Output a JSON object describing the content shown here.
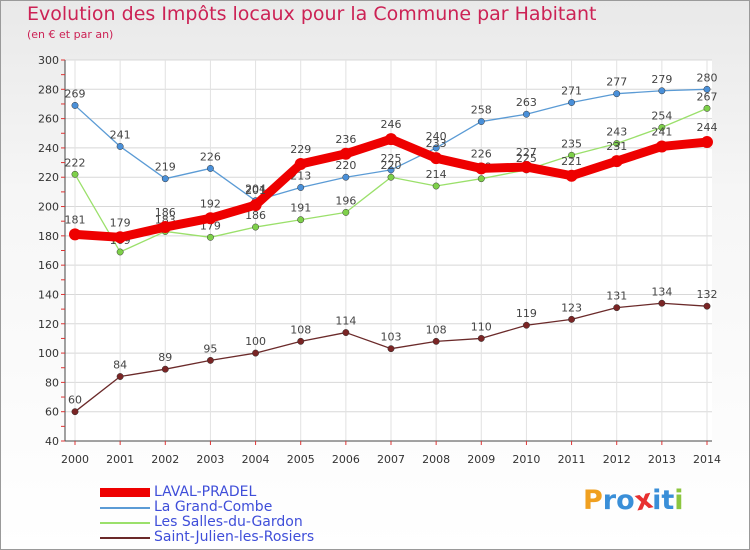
{
  "header": {
    "title": "Evolution des Impôts locaux pour la Commune par Habitant",
    "subtitle": "(en € et par an)"
  },
  "logo": {
    "text": "Proxiti",
    "letters": [
      "P",
      "r",
      "o",
      "x",
      "i",
      "t",
      "i"
    ],
    "colors": [
      "#f0a020",
      "#3a8fd8",
      "#3a8fd8",
      "#e83030",
      "#3a8fd8",
      "#3a8fd8",
      "#8cc63f"
    ]
  },
  "chart_data": {
    "type": "line",
    "title": "Evolution des Impôts locaux pour la Commune par Habitant",
    "subtitle": "(en € et par an)",
    "xlabel": "",
    "ylabel": "",
    "ylim": [
      40,
      300
    ],
    "yticks": [
      40,
      60,
      80,
      100,
      120,
      140,
      160,
      180,
      200,
      220,
      240,
      260,
      280,
      300
    ],
    "categories": [
      "2000",
      "2001",
      "2002",
      "2003",
      "2004",
      "2005",
      "2006",
      "2007",
      "2008",
      "2009",
      "2010",
      "2011",
      "2012",
      "2013",
      "2014"
    ],
    "grid": true,
    "legend_position": "bottom-left",
    "series": [
      {
        "name": "La Grand-Combe",
        "color": "#5b9bd5",
        "marker_color": "#4a90d9",
        "style": "thin",
        "values": [
          269,
          241,
          219,
          226,
          204,
          213,
          220,
          225,
          240,
          258,
          263,
          271,
          277,
          279,
          280
        ]
      },
      {
        "name": "Les Salles-du-Gardon",
        "color": "#9be06b",
        "marker_color": "#7ed04a",
        "style": "thin",
        "values": [
          222,
          169,
          183,
          179,
          186,
          191,
          196,
          220,
          214,
          219,
          225,
          235,
          243,
          254,
          267
        ]
      },
      {
        "name": "Saint-Julien-les-Rosiers",
        "color": "#6b2a2a",
        "marker_color": "#7a2525",
        "style": "thin",
        "values": [
          60,
          84,
          89,
          95,
          100,
          108,
          114,
          103,
          108,
          110,
          119,
          123,
          131,
          134,
          132
        ]
      },
      {
        "name": "LAVAL-PRADEL",
        "color": "#ee0000",
        "marker_color": "#ee0000",
        "style": "thick",
        "values": [
          181,
          179,
          186,
          192,
          201,
          229,
          236,
          246,
          233,
          226,
          227,
          221,
          231,
          241,
          244
        ]
      }
    ],
    "legend": [
      "LAVAL-PRADEL",
      "La Grand-Combe",
      "Les Salles-du-Gardon",
      "Saint-Julien-les-Rosiers"
    ]
  }
}
